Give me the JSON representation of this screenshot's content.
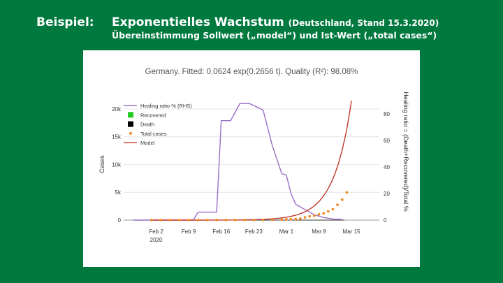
{
  "slide": {
    "label": "Beispiel:",
    "heading": "Exponentielles Wachstum",
    "heading_suffix": "(Deutschland, Stand 15.3.2020)",
    "subheading": "Übereinstimmung Sollwert („model“) und Ist-Wert („total cases“)"
  },
  "colors": {
    "background": "#00793f",
    "healing": "#9b6dc6",
    "recovered": "#22cc22",
    "death": "#000000",
    "total": "#f28c28",
    "model": "#c0392b"
  },
  "chart_data": {
    "type": "line",
    "title": "Germany. Fitted: 0.0624 exp(0.2656 t). Quality (R²): 98.08%",
    "ylabel_left": "Cases",
    "ylabel_right": "Healing ratio = (Death+Recovered)/Total %",
    "x_ticks": [
      "Feb 2",
      "Feb 9",
      "Feb 16",
      "Feb 23",
      "Mar 1",
      "Mar 8",
      "Mar 15"
    ],
    "x_year": "2020",
    "y_left_ticks": [
      "0",
      "5k",
      "10k",
      "15k",
      "20k"
    ],
    "y_right_ticks": [
      "0",
      "20",
      "40",
      "60",
      "80"
    ],
    "ylim_left": [
      0,
      21000
    ],
    "ylim_right": [
      0,
      88
    ],
    "legend": [
      "Healing ratio % (RHS)",
      "Recovered",
      "Death",
      "Total cases",
      "Model"
    ],
    "legend_position": "top-left",
    "grid": true,
    "series": [
      {
        "name": "Healing ratio % (RHS)",
        "axis": "right",
        "x": [
          "2020-01-28",
          "2020-02-10",
          "2020-02-11",
          "2020-02-15",
          "2020-02-16",
          "2020-02-18",
          "2020-02-20",
          "2020-02-22",
          "2020-02-25",
          "2020-02-27",
          "2020-02-29",
          "2020-03-01",
          "2020-03-02",
          "2020-03-03",
          "2020-03-05",
          "2020-03-07",
          "2020-03-09",
          "2020-03-11",
          "2020-03-13"
        ],
        "values": [
          0,
          0,
          6,
          6,
          75,
          75,
          88,
          88,
          83,
          56,
          35,
          34,
          20,
          12,
          8,
          4,
          2,
          0.8,
          0.5
        ]
      },
      {
        "name": "Total cases",
        "axis": "left",
        "x": [
          "2020-02-01",
          "2020-02-03",
          "2020-02-05",
          "2020-02-07",
          "2020-02-09",
          "2020-02-11",
          "2020-02-13",
          "2020-02-15",
          "2020-02-17",
          "2020-02-19",
          "2020-02-21",
          "2020-02-23",
          "2020-02-25",
          "2020-02-27",
          "2020-02-29",
          "2020-03-01",
          "2020-03-02",
          "2020-03-03",
          "2020-03-04",
          "2020-03-05",
          "2020-03-06",
          "2020-03-07",
          "2020-03-08",
          "2020-03-09",
          "2020-03-10",
          "2020-03-11",
          "2020-03-12",
          "2020-03-13",
          "2020-03-14"
        ],
        "values": [
          8,
          10,
          12,
          13,
          14,
          16,
          16,
          16,
          16,
          16,
          16,
          16,
          18,
          48,
          79,
          130,
          165,
          196,
          262,
          482,
          670,
          799,
          1040,
          1224,
          1565,
          1966,
          2745,
          3675,
          5000
        ]
      },
      {
        "name": "Model",
        "axis": "left",
        "formula": "0.0624 exp(0.2656 t)"
      }
    ]
  }
}
